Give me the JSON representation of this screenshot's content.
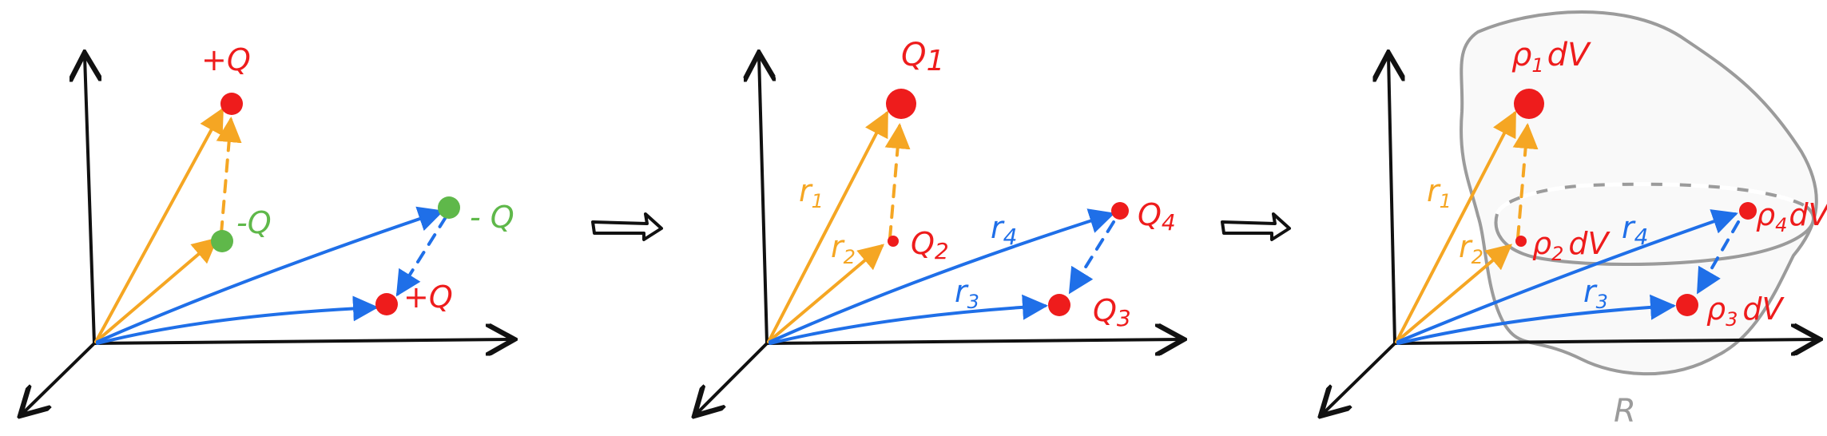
{
  "colors": {
    "axis": "#111111",
    "positive_charge": "#ee1c1c",
    "negative_charge": "#5fb84a",
    "orange_vector": "#f5a623",
    "blue_vector": "#1f6fe8",
    "region": "#9b9b9b",
    "implies_arrow": "#111111"
  },
  "panel1": {
    "charge_top": "+Q",
    "charge_mid": "-Q",
    "charge_right_top": "- Q",
    "charge_right_bottom": "+Q"
  },
  "panel2": {
    "q1": "Q",
    "q1_sub": "1",
    "q2": "Q",
    "q2_sub": "2",
    "q3": "Q",
    "q3_sub": "3",
    "q4": "Q",
    "q4_sub": "4",
    "r1": "r",
    "r1_sub": "1",
    "r2": "r",
    "r2_sub": "2",
    "r3": "r",
    "r3_sub": "3",
    "r4": "r",
    "r4_sub": "4"
  },
  "panel3": {
    "rho1": "ρ",
    "rho1_sub": "1",
    "rho1_dv": "dV",
    "rho2": "ρ",
    "rho2_sub": "2",
    "rho2_dv": "dV",
    "rho3": "ρ",
    "rho3_sub": "3",
    "rho3_dv": "dV",
    "rho4": "ρ",
    "rho4_sub": "4",
    "rho4_dv": "dV",
    "r1": "r",
    "r1_sub": "1",
    "r2": "r",
    "r2_sub": "2",
    "r3": "r",
    "r3_sub": "3",
    "r4": "r",
    "r4_sub": "4",
    "region_label": "R"
  }
}
